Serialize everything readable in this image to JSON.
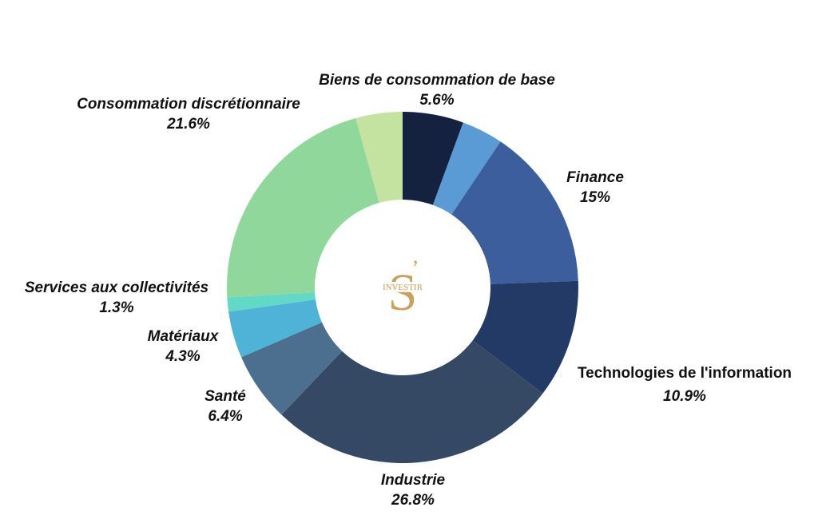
{
  "chart_data": {
    "type": "pie",
    "variant": "donut",
    "slices": [
      {
        "label": "Biens de consommation de base",
        "display": "5.6%",
        "value": 5.6,
        "color": "#14213f"
      },
      {
        "label": "",
        "display": "",
        "value": 3.8,
        "color": "#5b9bd5"
      },
      {
        "label": "Finance",
        "display": "15%",
        "value": 15.0,
        "color": "#3d5e9c"
      },
      {
        "label": "Technologies de l'information",
        "display": "10.9%",
        "value": 10.9,
        "color": "#233a66"
      },
      {
        "label": "Industrie",
        "display": "26.8%",
        "value": 26.8,
        "color": "#354864"
      },
      {
        "label": "Santé",
        "display": "6.4%",
        "value": 6.4,
        "color": "#4d6f8f"
      },
      {
        "label": "Matériaux",
        "display": "4.3%",
        "value": 4.3,
        "color": "#4fb3d8"
      },
      {
        "label": "Services aux collectivités",
        "display": "1.3%",
        "value": 1.3,
        "color": "#62d8c6"
      },
      {
        "label": "Consommation discrétionnaire",
        "display": "21.6%",
        "value": 21.6,
        "color": "#90d79c"
      },
      {
        "label": "",
        "display": "",
        "value": 4.3,
        "color": "#c5e3a0"
      }
    ]
  },
  "logo": {
    "letter": "S",
    "apostrophe": "’",
    "word": "INVESTIR",
    "color": "#c9a15a"
  }
}
